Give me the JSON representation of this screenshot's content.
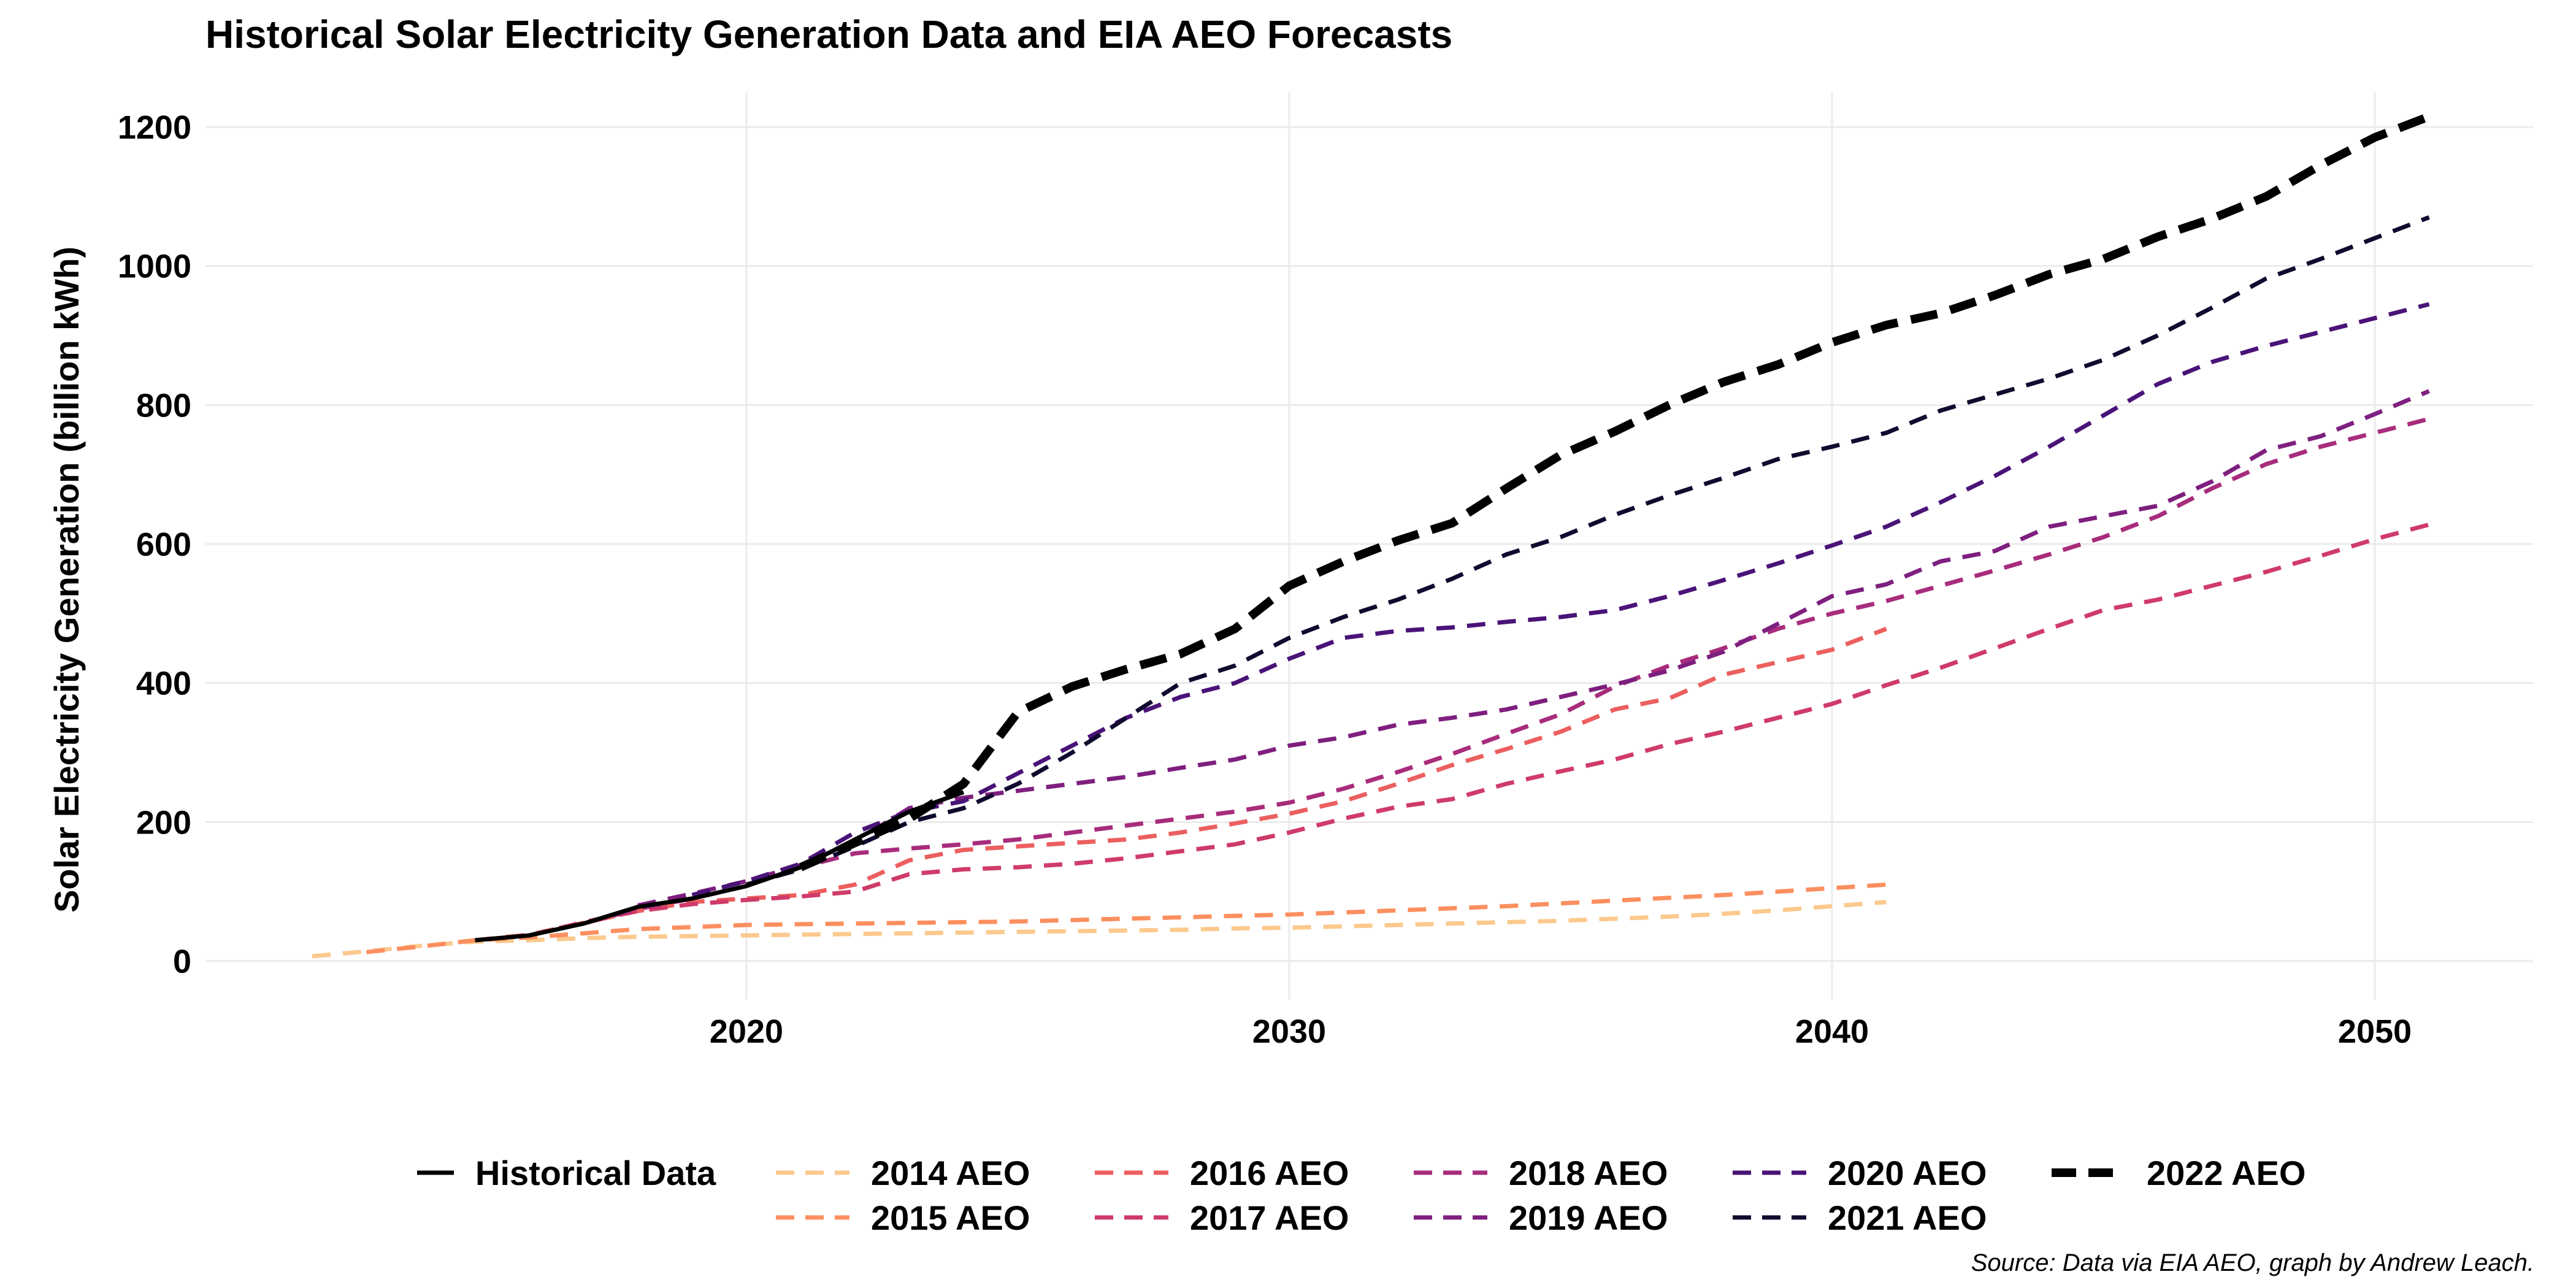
{
  "chart_data": {
    "type": "line",
    "title": "Historical Solar Electricity Generation Data and EIA AEO Forecasts",
    "xlabel": "",
    "ylabel": "Solar Electricity Generation (billion kWh)",
    "caption": "Source: Data via EIA AEO, graph by Andrew Leach.",
    "xlim": [
      2011,
      2053
    ],
    "ylim": [
      -60,
      1280
    ],
    "x_ticks": [
      2020,
      2030,
      2040,
      2050
    ],
    "y_ticks": [
      0,
      200,
      400,
      600,
      800,
      1000,
      1200
    ],
    "grid": true,
    "legend_position": "bottom",
    "series": [
      {
        "name": "Historical Data",
        "color": "#000000",
        "dash": "solid",
        "width": 7,
        "points": [
          [
            2015,
            30
          ],
          [
            2016,
            37
          ],
          [
            2017,
            54
          ],
          [
            2018,
            78
          ],
          [
            2019,
            90
          ],
          [
            2020,
            108
          ],
          [
            2021,
            135
          ],
          [
            2022,
            175
          ],
          [
            2023,
            215
          ],
          [
            2024,
            243
          ]
        ]
      },
      {
        "name": "2014 AEO",
        "color": "#fcc98e",
        "dash": "dashed",
        "width": 7,
        "points": [
          [
            2012,
            7
          ],
          [
            2013,
            14
          ],
          [
            2014,
            22
          ],
          [
            2015,
            28
          ],
          [
            2016,
            30
          ],
          [
            2017,
            33
          ],
          [
            2018,
            35
          ],
          [
            2019,
            36
          ],
          [
            2020,
            37
          ],
          [
            2021,
            38
          ],
          [
            2022,
            39
          ],
          [
            2023,
            40
          ],
          [
            2024,
            41
          ],
          [
            2025,
            42
          ],
          [
            2026,
            43
          ],
          [
            2027,
            44
          ],
          [
            2028,
            45
          ],
          [
            2029,
            47
          ],
          [
            2030,
            48
          ],
          [
            2031,
            50
          ],
          [
            2032,
            52
          ],
          [
            2033,
            54
          ],
          [
            2034,
            56
          ],
          [
            2035,
            58
          ],
          [
            2036,
            61
          ],
          [
            2037,
            64
          ],
          [
            2038,
            68
          ],
          [
            2039,
            73
          ],
          [
            2040,
            79
          ],
          [
            2041,
            85
          ]
        ]
      },
      {
        "name": "2015 AEO",
        "color": "#fc8f5f",
        "dash": "dashed",
        "width": 7,
        "points": [
          [
            2013,
            13
          ],
          [
            2014,
            21
          ],
          [
            2015,
            30
          ],
          [
            2016,
            34
          ],
          [
            2017,
            40
          ],
          [
            2018,
            46
          ],
          [
            2019,
            49
          ],
          [
            2020,
            52
          ],
          [
            2021,
            53
          ],
          [
            2022,
            54
          ],
          [
            2023,
            55
          ],
          [
            2024,
            56
          ],
          [
            2025,
            57
          ],
          [
            2026,
            59
          ],
          [
            2027,
            61
          ],
          [
            2028,
            63
          ],
          [
            2029,
            65
          ],
          [
            2030,
            67
          ],
          [
            2031,
            70
          ],
          [
            2032,
            73
          ],
          [
            2033,
            76
          ],
          [
            2034,
            79
          ],
          [
            2035,
            83
          ],
          [
            2036,
            87
          ],
          [
            2037,
            91
          ],
          [
            2038,
            95
          ],
          [
            2039,
            100
          ],
          [
            2040,
            105
          ],
          [
            2041,
            110
          ]
        ]
      },
      {
        "name": "2016 AEO",
        "color": "#ec5f5f",
        "dash": "dashed",
        "width": 7,
        "points": [
          [
            2015,
            30
          ],
          [
            2016,
            38
          ],
          [
            2017,
            55
          ],
          [
            2018,
            72
          ],
          [
            2019,
            85
          ],
          [
            2020,
            90
          ],
          [
            2021,
            95
          ],
          [
            2022,
            110
          ],
          [
            2023,
            145
          ],
          [
            2024,
            160
          ],
          [
            2025,
            165
          ],
          [
            2026,
            170
          ],
          [
            2027,
            175
          ],
          [
            2028,
            185
          ],
          [
            2029,
            198
          ],
          [
            2030,
            212
          ],
          [
            2031,
            230
          ],
          [
            2032,
            255
          ],
          [
            2033,
            282
          ],
          [
            2034,
            305
          ],
          [
            2035,
            330
          ],
          [
            2036,
            362
          ],
          [
            2037,
            378
          ],
          [
            2038,
            412
          ],
          [
            2039,
            430
          ],
          [
            2040,
            448
          ],
          [
            2041,
            478
          ]
        ]
      },
      {
        "name": "2017 AEO",
        "color": "#cf3b69",
        "dash": "dashed",
        "width": 7,
        "points": [
          [
            2016,
            37
          ],
          [
            2017,
            56
          ],
          [
            2018,
            72
          ],
          [
            2019,
            82
          ],
          [
            2020,
            88
          ],
          [
            2021,
            93
          ],
          [
            2022,
            100
          ],
          [
            2023,
            125
          ],
          [
            2024,
            132
          ],
          [
            2025,
            135
          ],
          [
            2026,
            140
          ],
          [
            2027,
            148
          ],
          [
            2028,
            158
          ],
          [
            2029,
            168
          ],
          [
            2030,
            185
          ],
          [
            2031,
            205
          ],
          [
            2032,
            222
          ],
          [
            2033,
            233
          ],
          [
            2034,
            255
          ],
          [
            2035,
            273
          ],
          [
            2036,
            290
          ],
          [
            2037,
            312
          ],
          [
            2038,
            330
          ],
          [
            2039,
            350
          ],
          [
            2040,
            370
          ],
          [
            2041,
            397
          ],
          [
            2042,
            422
          ],
          [
            2043,
            450
          ],
          [
            2044,
            478
          ],
          [
            2045,
            505
          ],
          [
            2046,
            520
          ],
          [
            2047,
            540
          ],
          [
            2048,
            560
          ],
          [
            2049,
            583
          ],
          [
            2050,
            607
          ],
          [
            2051,
            628
          ]
        ]
      },
      {
        "name": "2018 AEO",
        "color": "#a82c7c",
        "dash": "dashed",
        "width": 7,
        "points": [
          [
            2017,
            54
          ],
          [
            2018,
            75
          ],
          [
            2019,
            90
          ],
          [
            2020,
            108
          ],
          [
            2021,
            135
          ],
          [
            2022,
            155
          ],
          [
            2023,
            162
          ],
          [
            2024,
            168
          ],
          [
            2025,
            175
          ],
          [
            2026,
            185
          ],
          [
            2027,
            195
          ],
          [
            2028,
            205
          ],
          [
            2029,
            215
          ],
          [
            2030,
            228
          ],
          [
            2031,
            248
          ],
          [
            2032,
            272
          ],
          [
            2033,
            298
          ],
          [
            2034,
            327
          ],
          [
            2035,
            355
          ],
          [
            2036,
            395
          ],
          [
            2037,
            425
          ],
          [
            2038,
            450
          ],
          [
            2039,
            478
          ],
          [
            2040,
            500
          ],
          [
            2041,
            518
          ],
          [
            2042,
            540
          ],
          [
            2043,
            562
          ],
          [
            2044,
            585
          ],
          [
            2045,
            610
          ],
          [
            2046,
            640
          ],
          [
            2047,
            680
          ],
          [
            2048,
            715
          ],
          [
            2049,
            740
          ],
          [
            2050,
            760
          ],
          [
            2051,
            780
          ]
        ]
      },
      {
        "name": "2019 AEO",
        "color": "#7e1f7f",
        "dash": "dashed",
        "width": 7,
        "points": [
          [
            2018,
            80
          ],
          [
            2019,
            97
          ],
          [
            2020,
            115
          ],
          [
            2021,
            138
          ],
          [
            2022,
            172
          ],
          [
            2023,
            220
          ],
          [
            2024,
            235
          ],
          [
            2025,
            245
          ],
          [
            2026,
            255
          ],
          [
            2027,
            265
          ],
          [
            2028,
            278
          ],
          [
            2029,
            290
          ],
          [
            2030,
            310
          ],
          [
            2031,
            322
          ],
          [
            2032,
            340
          ],
          [
            2033,
            350
          ],
          [
            2034,
            362
          ],
          [
            2035,
            380
          ],
          [
            2036,
            398
          ],
          [
            2037,
            418
          ],
          [
            2038,
            445
          ],
          [
            2039,
            485
          ],
          [
            2040,
            525
          ],
          [
            2041,
            542
          ],
          [
            2042,
            575
          ],
          [
            2043,
            590
          ],
          [
            2044,
            625
          ],
          [
            2045,
            640
          ],
          [
            2046,
            655
          ],
          [
            2047,
            690
          ],
          [
            2048,
            735
          ],
          [
            2049,
            755
          ],
          [
            2050,
            787
          ],
          [
            2051,
            820
          ]
        ]
      },
      {
        "name": "2020 AEO",
        "color": "#4a1378",
        "dash": "dashed",
        "width": 7,
        "points": [
          [
            2019,
            95
          ],
          [
            2020,
            115
          ],
          [
            2021,
            140
          ],
          [
            2022,
            185
          ],
          [
            2023,
            215
          ],
          [
            2024,
            230
          ],
          [
            2025,
            270
          ],
          [
            2026,
            310
          ],
          [
            2027,
            350
          ],
          [
            2028,
            380
          ],
          [
            2029,
            400
          ],
          [
            2030,
            435
          ],
          [
            2031,
            465
          ],
          [
            2032,
            475
          ],
          [
            2033,
            480
          ],
          [
            2034,
            488
          ],
          [
            2035,
            495
          ],
          [
            2036,
            505
          ],
          [
            2037,
            525
          ],
          [
            2038,
            548
          ],
          [
            2039,
            572
          ],
          [
            2040,
            598
          ],
          [
            2041,
            625
          ],
          [
            2042,
            660
          ],
          [
            2043,
            698
          ],
          [
            2044,
            740
          ],
          [
            2045,
            785
          ],
          [
            2046,
            830
          ],
          [
            2047,
            862
          ],
          [
            2048,
            885
          ],
          [
            2049,
            905
          ],
          [
            2050,
            925
          ],
          [
            2051,
            945
          ]
        ]
      },
      {
        "name": "2021 AEO",
        "color": "#100a2e",
        "dash": "dashed",
        "width": 7,
        "points": [
          [
            2020,
            110
          ],
          [
            2021,
            132
          ],
          [
            2022,
            165
          ],
          [
            2023,
            200
          ],
          [
            2024,
            220
          ],
          [
            2025,
            255
          ],
          [
            2026,
            300
          ],
          [
            2027,
            350
          ],
          [
            2028,
            400
          ],
          [
            2029,
            425
          ],
          [
            2030,
            465
          ],
          [
            2031,
            495
          ],
          [
            2032,
            520
          ],
          [
            2033,
            550
          ],
          [
            2034,
            585
          ],
          [
            2035,
            610
          ],
          [
            2036,
            642
          ],
          [
            2037,
            670
          ],
          [
            2038,
            695
          ],
          [
            2039,
            722
          ],
          [
            2040,
            740
          ],
          [
            2041,
            760
          ],
          [
            2042,
            792
          ],
          [
            2043,
            815
          ],
          [
            2044,
            838
          ],
          [
            2045,
            865
          ],
          [
            2046,
            900
          ],
          [
            2047,
            940
          ],
          [
            2048,
            982
          ],
          [
            2049,
            1010
          ],
          [
            2050,
            1040
          ],
          [
            2051,
            1070
          ]
        ]
      },
      {
        "name": "2022 AEO",
        "color": "#000000",
        "dash": "dashed-bold",
        "width": 14,
        "points": [
          [
            2021,
            135
          ],
          [
            2022,
            170
          ],
          [
            2023,
            205
          ],
          [
            2024,
            255
          ],
          [
            2025,
            358
          ],
          [
            2026,
            395
          ],
          [
            2027,
            420
          ],
          [
            2028,
            442
          ],
          [
            2029,
            478
          ],
          [
            2030,
            540
          ],
          [
            2031,
            575
          ],
          [
            2032,
            605
          ],
          [
            2033,
            630
          ],
          [
            2034,
            680
          ],
          [
            2035,
            728
          ],
          [
            2036,
            762
          ],
          [
            2037,
            800
          ],
          [
            2038,
            833
          ],
          [
            2039,
            858
          ],
          [
            2040,
            890
          ],
          [
            2041,
            915
          ],
          [
            2042,
            932
          ],
          [
            2043,
            958
          ],
          [
            2044,
            988
          ],
          [
            2045,
            1010
          ],
          [
            2046,
            1042
          ],
          [
            2047,
            1068
          ],
          [
            2048,
            1100
          ],
          [
            2049,
            1145
          ],
          [
            2050,
            1185
          ],
          [
            2051,
            1215
          ]
        ]
      }
    ]
  }
}
